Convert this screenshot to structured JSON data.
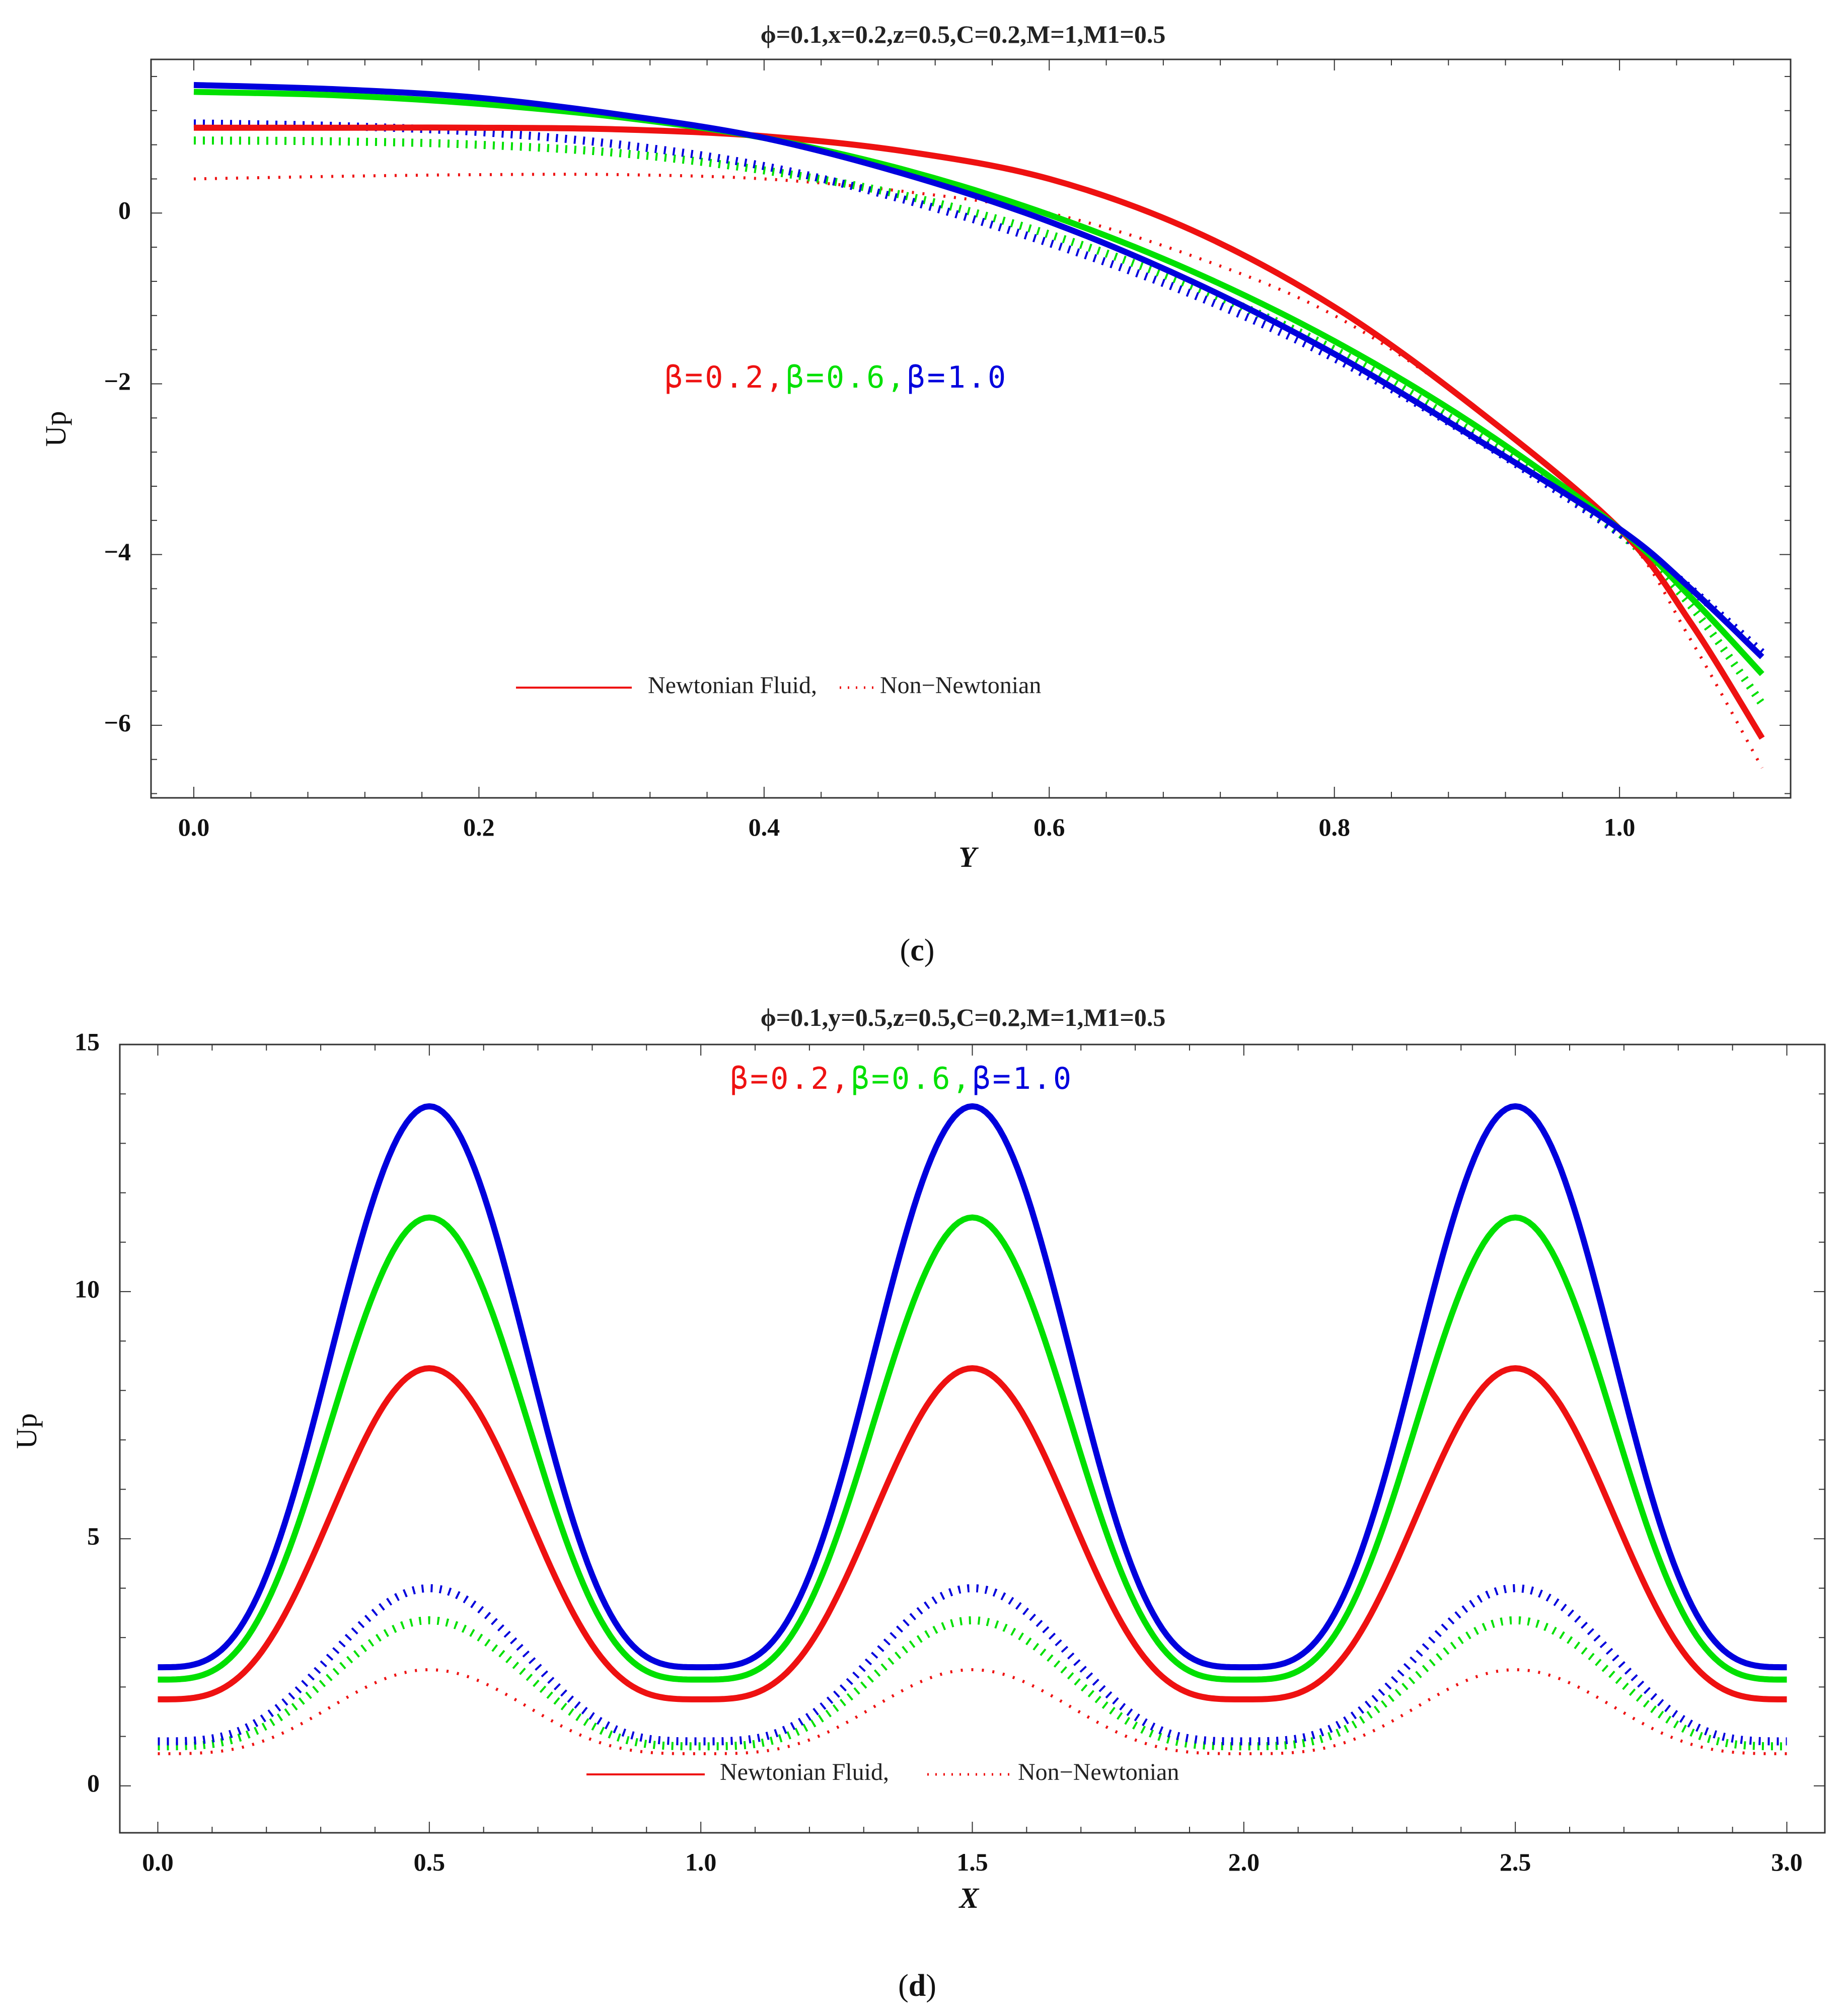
{
  "colors": {
    "red": "#ee1111",
    "green": "#00e000",
    "blue": "#0000dd"
  },
  "chart_data": [
    {
      "type": "line",
      "panel": "(c)",
      "title": "ϕ=0.1,x=0.2,z=0.5,C=0.2,M=1,M1=0.5",
      "xlabel": "Y",
      "ylabel": "Up",
      "xlim": [
        -0.03,
        1.12
      ],
      "ylim": [
        -6.85,
        1.8
      ],
      "xticks": [
        0.0,
        0.2,
        0.4,
        0.6,
        0.8,
        1.0
      ],
      "xtick_labels": [
        "0.0",
        "0.2",
        "0.4",
        "0.6",
        "0.8",
        "1.0"
      ],
      "yticks": [
        0,
        -2,
        -4,
        -6
      ],
      "ytick_labels": [
        "0",
        "−2",
        "−4",
        "−6"
      ],
      "beta_labels": [
        "β=0.2,",
        "β=0.6,",
        "β=1.0"
      ],
      "legend": {
        "solid": "Newtonian Fluid,",
        "dotted": "Non−Newtonian"
      },
      "series": [
        {
          "name": "β=0.2 Newtonian",
          "color": "red",
          "style": "solid",
          "x": [
            0,
            0.1,
            0.2,
            0.3,
            0.4,
            0.5,
            0.6,
            0.7,
            0.8,
            0.9,
            1.0,
            1.05,
            1.1
          ],
          "y": [
            1.0,
            1.0,
            1.0,
            0.98,
            0.9,
            0.72,
            0.4,
            -0.2,
            -1.1,
            -2.3,
            -3.7,
            -4.8,
            -6.15
          ]
        },
        {
          "name": "β=0.6 Newtonian",
          "color": "green",
          "style": "solid",
          "x": [
            0,
            0.1,
            0.2,
            0.3,
            0.4,
            0.5,
            0.6,
            0.7,
            0.8,
            0.9,
            1.0,
            1.05,
            1.1
          ],
          "y": [
            1.42,
            1.38,
            1.28,
            1.12,
            0.88,
            0.5,
            -0.02,
            -0.68,
            -1.5,
            -2.5,
            -3.7,
            -4.5,
            -5.4
          ]
        },
        {
          "name": "β=1.0 Newtonian",
          "color": "blue",
          "style": "solid",
          "x": [
            0,
            0.1,
            0.2,
            0.3,
            0.4,
            0.5,
            0.6,
            0.7,
            0.8,
            0.9,
            1.0,
            1.05,
            1.1
          ],
          "y": [
            1.5,
            1.45,
            1.35,
            1.15,
            0.88,
            0.45,
            -0.1,
            -0.8,
            -1.65,
            -2.65,
            -3.7,
            -4.4,
            -5.2
          ]
        },
        {
          "name": "β=0.2 Non-Newtonian",
          "color": "red",
          "style": "dotted",
          "x": [
            0,
            0.1,
            0.2,
            0.3,
            0.4,
            0.5,
            0.6,
            0.7,
            0.8,
            0.9,
            1.0,
            1.05,
            1.1
          ],
          "y": [
            0.4,
            0.43,
            0.45,
            0.45,
            0.4,
            0.25,
            0.0,
            -0.5,
            -1.2,
            -2.3,
            -3.7,
            -5.0,
            -6.5
          ]
        },
        {
          "name": "β=0.6 Non-Newtonian",
          "color": "green",
          "style": "dotted",
          "x": [
            0,
            0.1,
            0.2,
            0.3,
            0.4,
            0.5,
            0.6,
            0.7,
            0.8,
            0.9,
            1.0,
            1.05,
            1.1
          ],
          "y": [
            0.85,
            0.84,
            0.8,
            0.7,
            0.5,
            0.2,
            -0.25,
            -0.85,
            -1.6,
            -2.6,
            -3.75,
            -4.6,
            -5.75
          ]
        },
        {
          "name": "β=1.0 Non-Newtonian",
          "color": "blue",
          "style": "dotted",
          "x": [
            0,
            0.1,
            0.2,
            0.3,
            0.4,
            0.5,
            0.6,
            0.7,
            0.8,
            0.9,
            1.0,
            1.05,
            1.1
          ],
          "y": [
            1.05,
            1.02,
            0.95,
            0.8,
            0.55,
            0.15,
            -0.35,
            -0.95,
            -1.7,
            -2.65,
            -3.75,
            -4.4,
            -5.15
          ]
        }
      ]
    },
    {
      "type": "line",
      "panel": "(d)",
      "title": "ϕ=0.1,y=0.5,z=0.5,C=0.2,M=1,M1=0.5",
      "xlabel": "X",
      "ylabel": "Up",
      "xlim": [
        -0.07,
        3.07
      ],
      "ylim": [
        -0.95,
        15.0
      ],
      "xticks": [
        0.0,
        0.5,
        1.0,
        1.5,
        2.0,
        2.5,
        3.0
      ],
      "xtick_labels": [
        "0.0",
        "0.5",
        "1.0",
        "1.5",
        "2.0",
        "2.5",
        "3.0"
      ],
      "yticks": [
        0,
        5,
        10,
        15
      ],
      "ytick_labels": [
        "0",
        "5",
        "10",
        "15"
      ],
      "beta_labels": [
        "β=0.2,",
        "β=0.6,",
        "β=1.0"
      ],
      "legend": {
        "solid": "Newtonian Fluid,",
        "dotted": "Non−Newtonian"
      },
      "series": [
        {
          "name": "β=0.2 Newtonian",
          "color": "red",
          "style": "solid",
          "min": 1.75,
          "max": 8.45,
          "period": 1.0,
          "peak_x": 0.5
        },
        {
          "name": "β=0.6 Newtonian",
          "color": "green",
          "style": "solid",
          "min": 2.15,
          "max": 11.5,
          "period": 1.0,
          "peak_x": 0.5
        },
        {
          "name": "β=1.0 Newtonian",
          "color": "blue",
          "style": "solid",
          "min": 2.4,
          "max": 13.75,
          "period": 1.0,
          "peak_x": 0.5
        },
        {
          "name": "β=0.2 Non-Newtonian",
          "color": "red",
          "style": "dotted",
          "min": 0.65,
          "max": 2.35,
          "period": 1.0,
          "peak_x": 0.5
        },
        {
          "name": "β=0.6 Non-Newtonian",
          "color": "green",
          "style": "dotted",
          "min": 0.8,
          "max": 3.35,
          "period": 1.0,
          "peak_x": 0.5
        },
        {
          "name": "β=1.0 Non-Newtonian",
          "color": "blue",
          "style": "dotted",
          "min": 0.9,
          "max": 4.0,
          "period": 1.0,
          "peak_x": 0.5
        }
      ]
    }
  ]
}
